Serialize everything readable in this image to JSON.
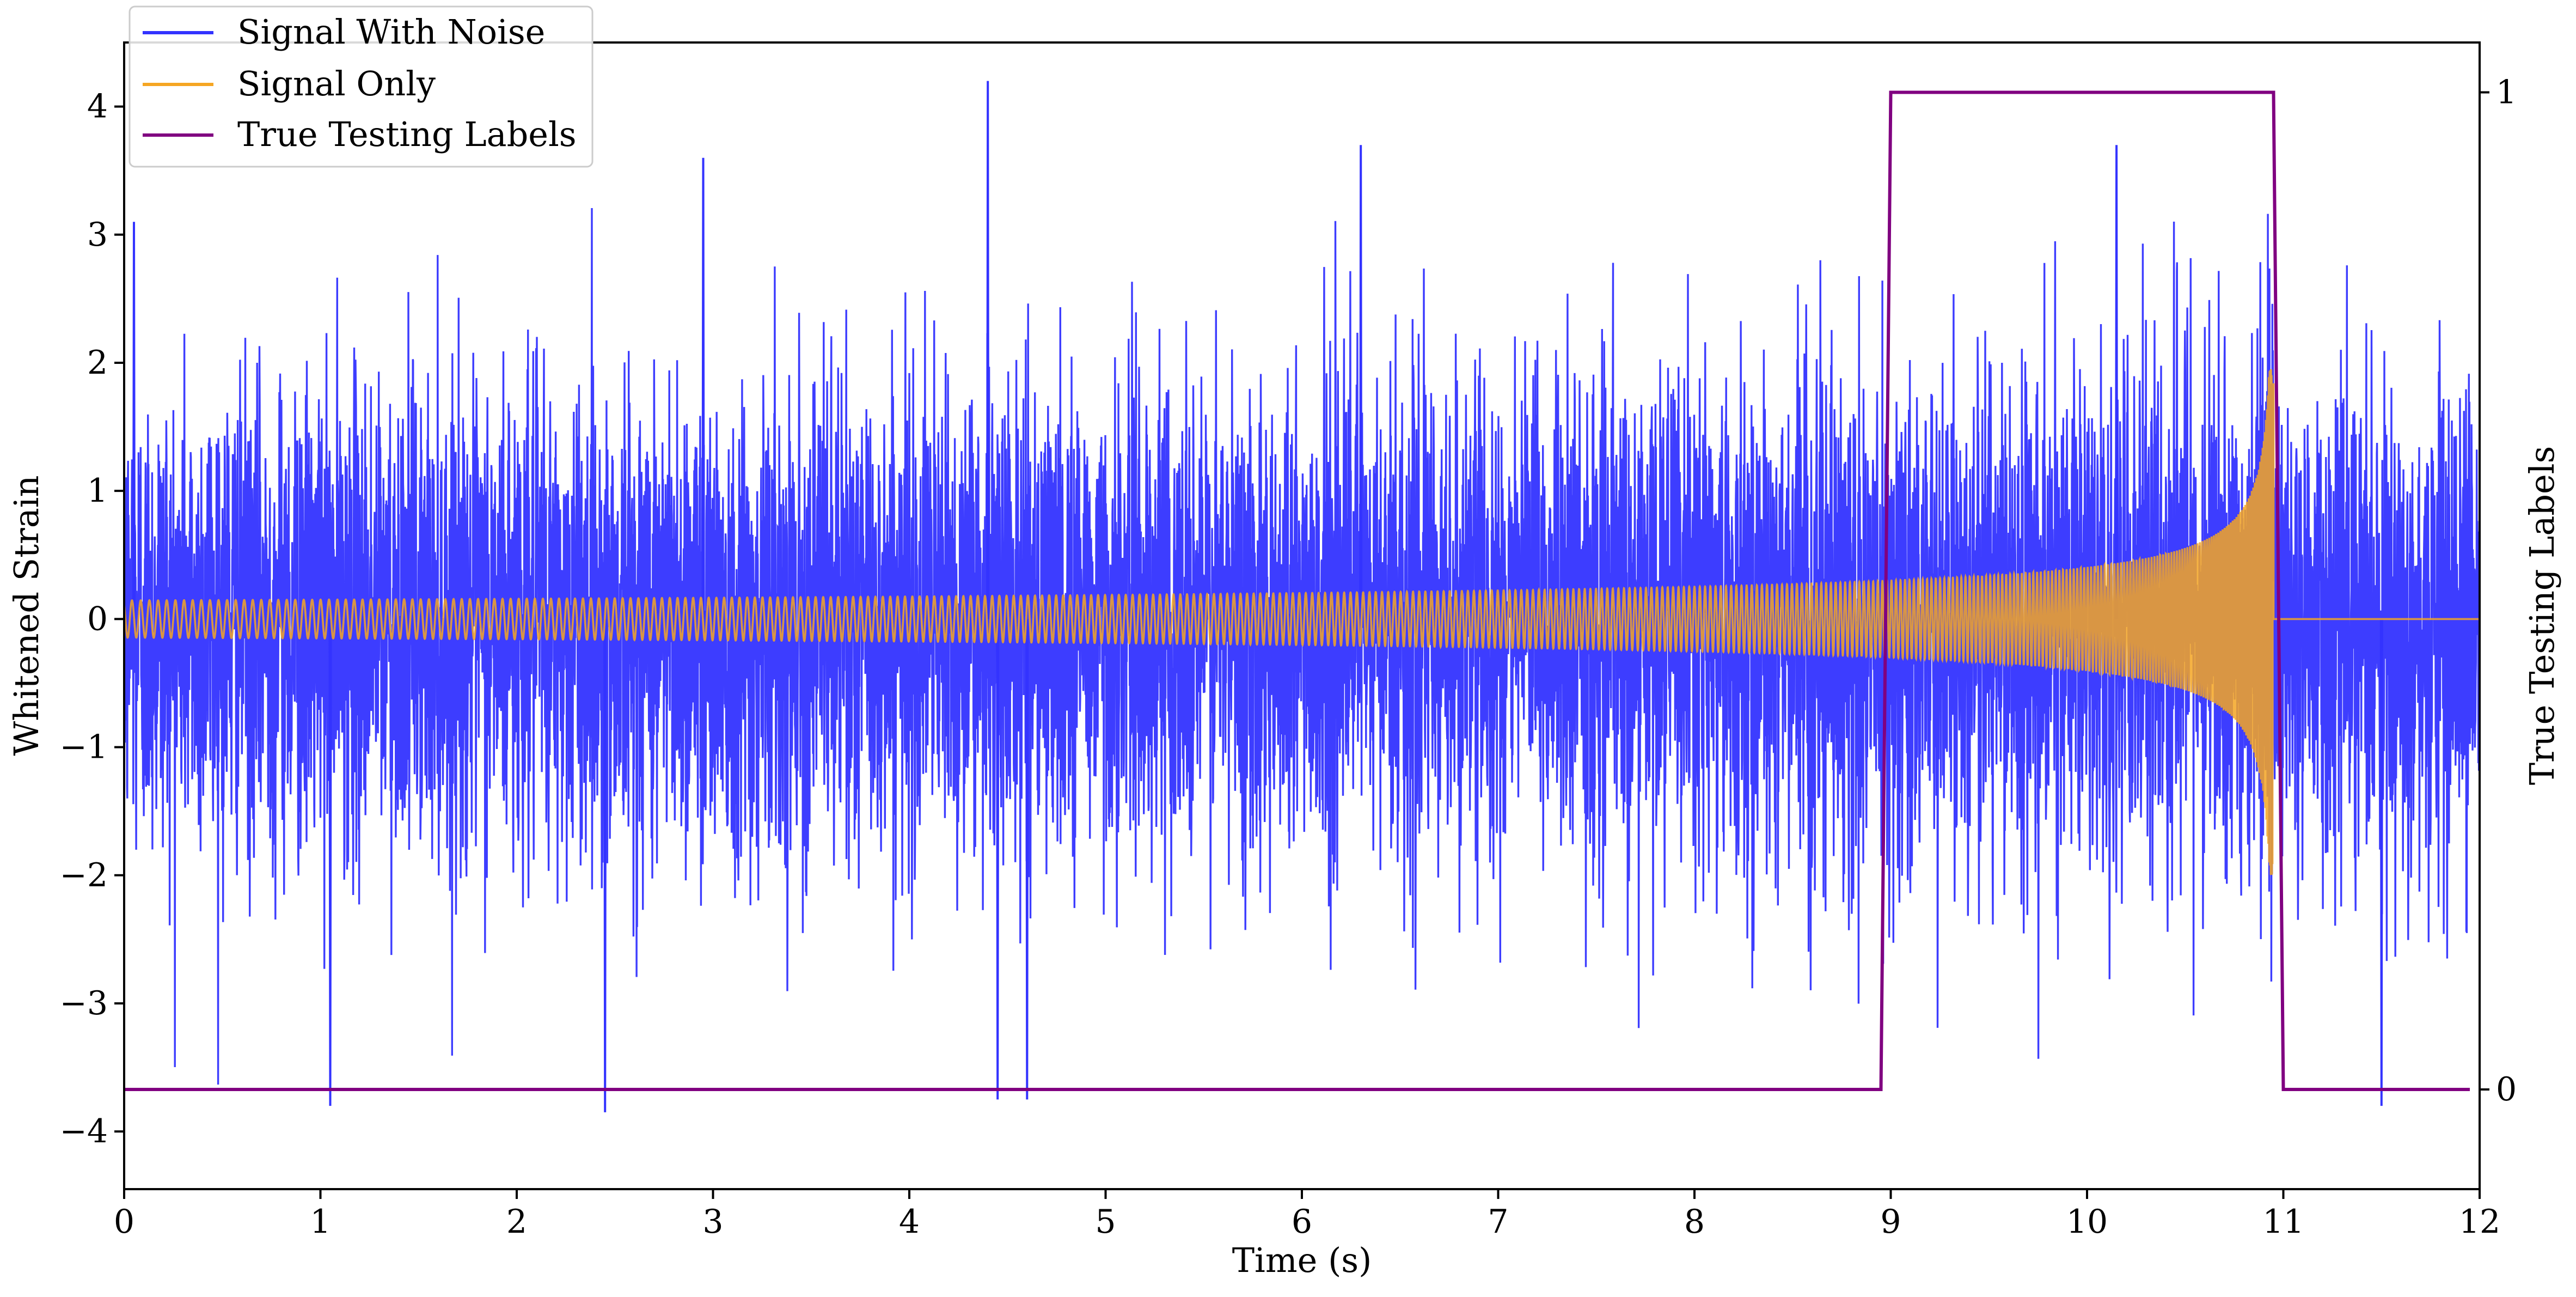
{
  "chart_data": {
    "type": "line",
    "xlabel": "Time (s)",
    "ylabel": "Whitened Strain",
    "y2label": "True Testing Labels",
    "xlim": [
      0,
      12
    ],
    "ylim": [
      -4.45,
      4.5
    ],
    "y2lim": [
      -0.1,
      1.05
    ],
    "x_ticks": [
      0,
      1,
      2,
      3,
      4,
      5,
      6,
      7,
      8,
      9,
      10,
      11,
      12
    ],
    "y_ticks": [
      -4,
      -3,
      -2,
      -1,
      0,
      1,
      2,
      3,
      4
    ],
    "y_tick_labels": [
      "−4",
      "−3",
      "−2",
      "−1",
      "0",
      "1",
      "2",
      "3",
      "4"
    ],
    "y2_ticks": [
      0,
      1
    ],
    "y2_tick_labels": [
      "0",
      "1"
    ],
    "grid": false,
    "legend_position": "top-left",
    "series": [
      {
        "name": "Signal With Noise",
        "color": "#3333ff",
        "axis": "left",
        "description_values": {
          "noise_std": 0.9,
          "peaks": [
            [
              0.05,
              3.1
            ],
            [
              1.05,
              -3.8
            ],
            [
              2.45,
              -3.85
            ],
            [
              2.95,
              3.6
            ],
            [
              4.4,
              4.2
            ],
            [
              4.45,
              -3.75
            ],
            [
              4.6,
              -3.75
            ],
            [
              6.3,
              3.7
            ],
            [
              10.15,
              3.7
            ],
            [
              11.5,
              -3.8
            ]
          ]
        }
      },
      {
        "name": "Signal Only",
        "color": "#f5a623",
        "axis": "left",
        "description_values": {
          "amplitude_start": 0.04,
          "amplitude_at_9s": 0.2,
          "amplitude_at_10s": 0.35,
          "amplitude_peak": 2.0,
          "merger_time": 10.95,
          "value_after_merger": 0
        }
      },
      {
        "name": "True Testing Labels",
        "color": "#800080",
        "axis": "right",
        "x": [
          0.0,
          8.95,
          9.0,
          10.95,
          11.0,
          11.95
        ],
        "y": [
          0,
          0,
          1,
          1,
          0,
          0
        ]
      }
    ]
  }
}
